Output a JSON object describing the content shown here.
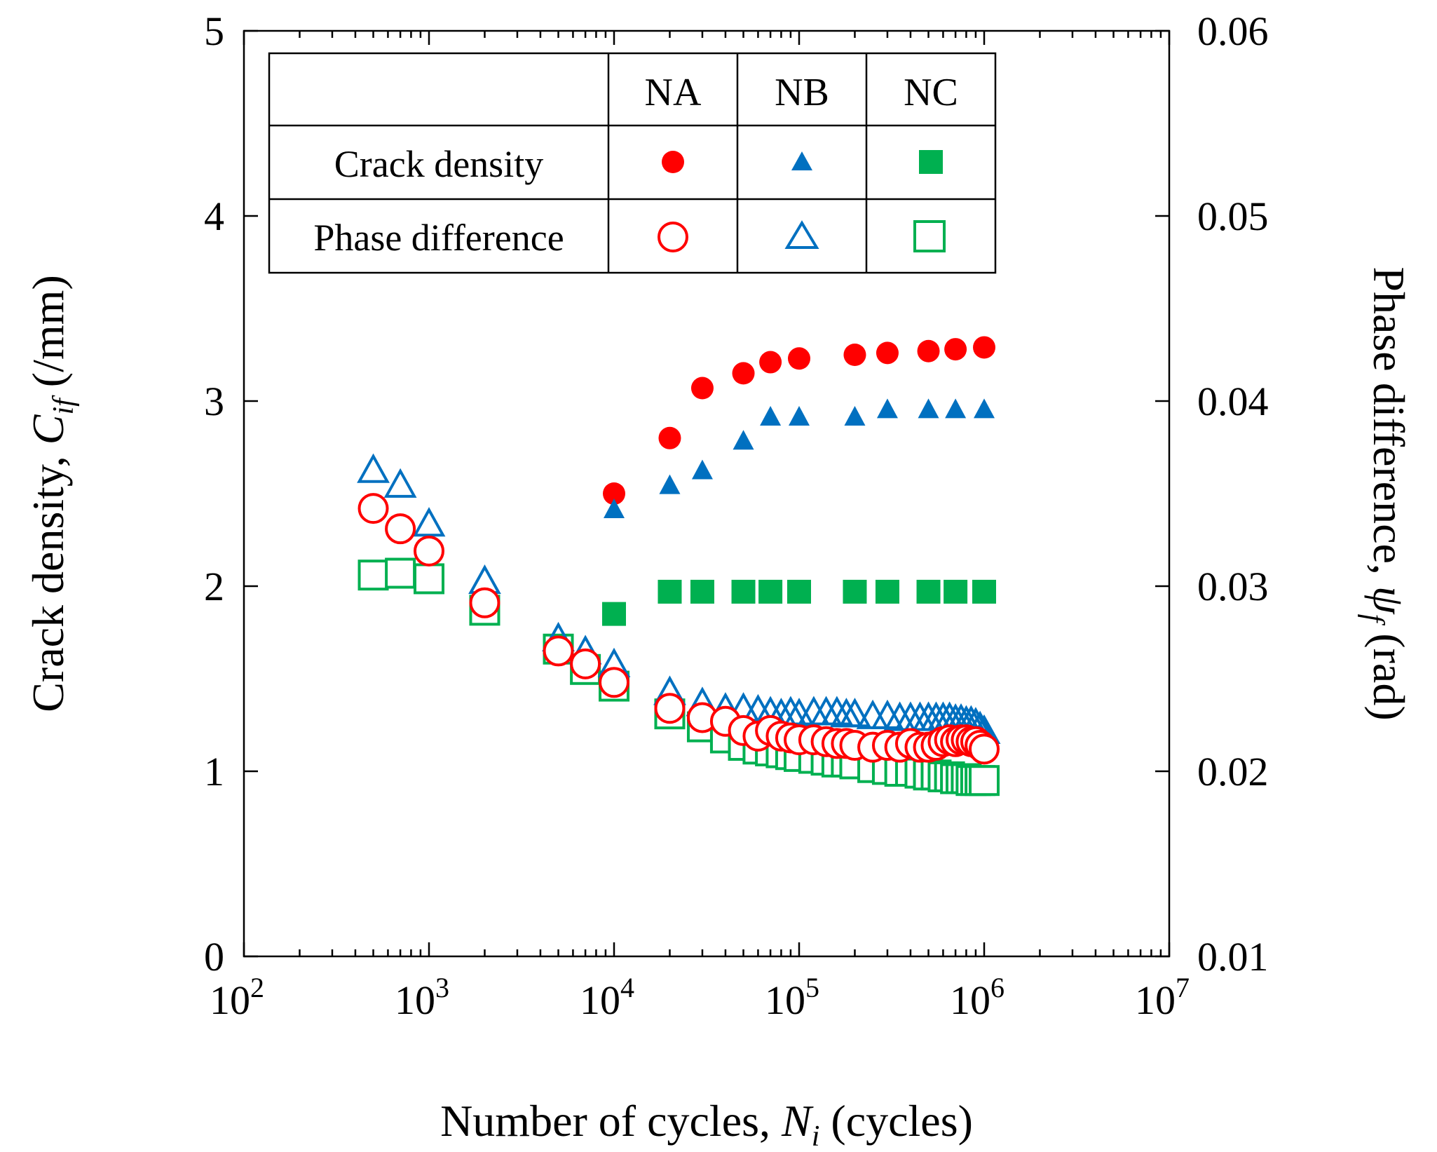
{
  "chart_data": {
    "type": "scatter",
    "xscale": "log",
    "xlim": [
      100,
      10000000
    ],
    "ylim_left": [
      0,
      5
    ],
    "ylim_right": [
      0.01,
      0.06
    ],
    "x_ticks": [
      {
        "base": "10",
        "exp": "2"
      },
      {
        "base": "10",
        "exp": "3"
      },
      {
        "base": "10",
        "exp": "4"
      },
      {
        "base": "10",
        "exp": "5"
      },
      {
        "base": "10",
        "exp": "6"
      },
      {
        "base": "10",
        "exp": "7"
      }
    ],
    "y_left_ticks": [
      "0",
      "1",
      "2",
      "3",
      "4",
      "5"
    ],
    "y_right_ticks": [
      "0.01",
      "0.02",
      "0.03",
      "0.04",
      "0.05",
      "0.06"
    ],
    "xlabel": {
      "text": "Number of cycles, ",
      "var": "N",
      "sub": "i",
      "unit": " (cycles)"
    },
    "ylabel_left": {
      "text": "Crack density, ",
      "var": "C",
      "sub": "if",
      "unit": " (/mm)"
    },
    "ylabel_right": {
      "text": "Phase difference, ",
      "var": "ψ",
      "sub": "f",
      "unit": " (rad)"
    },
    "legend": {
      "columns": [
        "NA",
        "NB",
        "NC"
      ],
      "rows": [
        "Crack density",
        "Phase difference"
      ],
      "colors": [
        "#ff0000",
        "#0070c0",
        "#00b050"
      ],
      "markers": [
        "circle",
        "triangle",
        "square"
      ]
    },
    "crack_density": [
      {
        "name": "NA",
        "color": "#ff0000",
        "marker": "circle",
        "x": [
          10000,
          20000,
          30000,
          50000,
          70000,
          100000,
          200000,
          300000,
          500000,
          700000,
          1000000
        ],
        "y": [
          2.5,
          2.8,
          3.07,
          3.15,
          3.21,
          3.23,
          3.25,
          3.26,
          3.27,
          3.28,
          3.29
        ]
      },
      {
        "name": "NB",
        "color": "#0070c0",
        "marker": "triangle",
        "x": [
          10000,
          20000,
          30000,
          50000,
          70000,
          100000,
          200000,
          300000,
          500000,
          700000,
          1000000
        ],
        "y": [
          2.41,
          2.54,
          2.62,
          2.78,
          2.91,
          2.91,
          2.91,
          2.95,
          2.95,
          2.95,
          2.95
        ]
      },
      {
        "name": "NC",
        "color": "#00b050",
        "marker": "square",
        "x": [
          10000,
          20000,
          30000,
          50000,
          70000,
          100000,
          200000,
          300000,
          500000,
          700000,
          1000000
        ],
        "y": [
          1.85,
          1.97,
          1.97,
          1.97,
          1.97,
          1.97,
          1.97,
          1.97,
          1.97,
          1.97,
          1.97
        ]
      }
    ],
    "phase_difference": [
      {
        "name": "NA",
        "color": "#ff0000",
        "marker": "circle",
        "x": [
          500,
          700,
          1000,
          2000,
          5000,
          7000,
          10000,
          20000,
          30000,
          40000,
          50000,
          60000,
          70000,
          80000,
          90000,
          100000,
          120000,
          140000,
          160000,
          180000,
          200000,
          250000,
          300000,
          350000,
          400000,
          450000,
          500000,
          550000,
          600000,
          650000,
          700000,
          750000,
          800000,
          850000,
          900000,
          950000,
          1000000
        ],
        "y": [
          0.0342,
          0.0331,
          0.0319,
          0.0291,
          0.0265,
          0.0258,
          0.0248,
          0.0234,
          0.0229,
          0.0227,
          0.0222,
          0.0219,
          0.0222,
          0.0219,
          0.0218,
          0.0217,
          0.0217,
          0.0216,
          0.0215,
          0.0215,
          0.0214,
          0.0213,
          0.0214,
          0.0213,
          0.0215,
          0.0213,
          0.0213,
          0.0214,
          0.0216,
          0.0217,
          0.0216,
          0.0217,
          0.0217,
          0.0216,
          0.0216,
          0.0214,
          0.0212
        ]
      },
      {
        "name": "NB",
        "color": "#0070c0",
        "marker": "triangle",
        "x": [
          500,
          700,
          1000,
          2000,
          5000,
          7000,
          10000,
          20000,
          30000,
          40000,
          50000,
          60000,
          70000,
          80000,
          90000,
          100000,
          120000,
          140000,
          160000,
          180000,
          200000,
          250000,
          300000,
          350000,
          400000,
          450000,
          500000,
          550000,
          600000,
          650000,
          700000,
          750000,
          800000,
          850000,
          900000,
          950000,
          1000000
        ],
        "y": [
          0.0362,
          0.0354,
          0.0333,
          0.0302,
          0.0271,
          0.0264,
          0.0257,
          0.0242,
          0.0236,
          0.0233,
          0.0233,
          0.0232,
          0.0231,
          0.023,
          0.0231,
          0.023,
          0.0231,
          0.0231,
          0.0231,
          0.023,
          0.023,
          0.0229,
          0.0229,
          0.0228,
          0.0228,
          0.0228,
          0.0228,
          0.0228,
          0.0228,
          0.0228,
          0.0227,
          0.0227,
          0.0226,
          0.0226,
          0.0225,
          0.0223,
          0.0221
        ]
      },
      {
        "name": "NC",
        "color": "#00b050",
        "marker": "square",
        "x": [
          500,
          700,
          1000,
          2000,
          5000,
          7000,
          10000,
          20000,
          30000,
          40000,
          50000,
          60000,
          70000,
          80000,
          90000,
          100000,
          120000,
          140000,
          160000,
          180000,
          200000,
          250000,
          300000,
          350000,
          400000,
          450000,
          500000,
          550000,
          600000,
          650000,
          700000,
          750000,
          800000,
          850000,
          900000,
          950000,
          1000000
        ],
        "y": [
          0.0306,
          0.0307,
          0.0304,
          0.0287,
          0.0266,
          0.0255,
          0.0246,
          0.0231,
          0.0224,
          0.0218,
          0.0214,
          0.0212,
          0.0211,
          0.021,
          0.0209,
          0.0208,
          0.0207,
          0.0206,
          0.0205,
          0.0205,
          0.0204,
          0.0202,
          0.0201,
          0.02,
          0.02,
          0.0199,
          0.0198,
          0.0198,
          0.0197,
          0.0197,
          0.0196,
          0.0196,
          0.0196,
          0.0195,
          0.0195,
          0.0195,
          0.0195
        ]
      }
    ]
  }
}
